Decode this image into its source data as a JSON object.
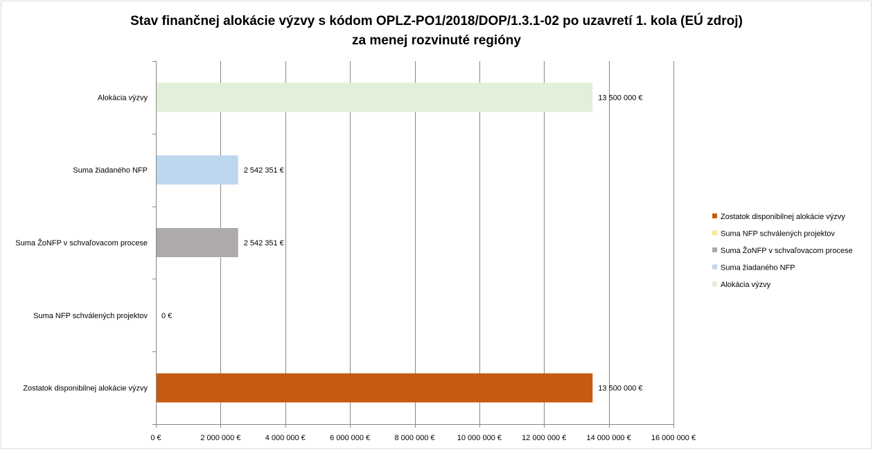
{
  "chart_data": {
    "type": "bar",
    "orientation": "horizontal",
    "title": "Stav finančnej alokácie výzvy s kódom OPLZ-PO1/2018/DOP/1.3.1-02 po uzavretí 1. kola (EÚ zdroj)",
    "subtitle": "za menej rozvinuté regióny",
    "categories": [
      "Alokácia výzvy",
      "Suma žiadaného NFP",
      "Suma ŽoNFP v schvaľovacom procese",
      "Suma NFP schválených projektov",
      "Zostatok disponibilnej alokácie výzvy"
    ],
    "values": [
      13500000,
      2542351,
      2542351,
      0,
      13500000
    ],
    "value_labels": [
      "13 500 000 €",
      "2 542 351 €",
      "2 542 351 €",
      "0 €",
      "13 500 000 €"
    ],
    "colors": [
      "#e2efda",
      "#bdd7ee",
      "#aeaaaa",
      "#ffe699",
      "#c55a11"
    ],
    "xlim": [
      0,
      16000000
    ],
    "x_ticks": [
      0,
      2000000,
      4000000,
      6000000,
      8000000,
      10000000,
      12000000,
      14000000,
      16000000
    ],
    "x_tick_labels": [
      "0 €",
      "2 000 000 €",
      "4 000 000 €",
      "6 000 000 €",
      "8 000 000 €",
      "10 000 000 €",
      "12 000 000 €",
      "14 000 000 €",
      "16 000 000 €"
    ],
    "grid": "vertical",
    "legend_position": "right",
    "legend": [
      {
        "label": "Zostatok disponibilnej alokácie výzvy",
        "color": "#c55a11"
      },
      {
        "label": "Suma NFP schválených projektov",
        "color": "#ffe699"
      },
      {
        "label": "Suma ŽoNFP v schvaľovacom procese",
        "color": "#aeaaaa"
      },
      {
        "label": "Suma žiadaného NFP",
        "color": "#bdd7ee"
      },
      {
        "label": "Alokácia výzvy",
        "color": "#e2efda"
      }
    ]
  }
}
